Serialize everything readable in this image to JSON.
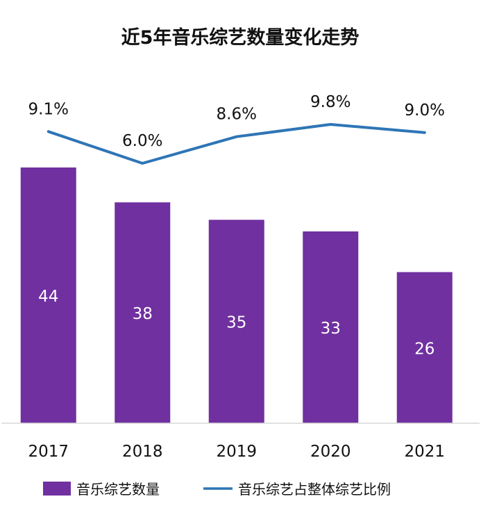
{
  "chart_data": {
    "type": "bar",
    "title": "近5年音乐综艺数量变化走势",
    "categories": [
      "2017",
      "2018",
      "2019",
      "2020",
      "2021"
    ],
    "series": [
      {
        "name": "音乐综艺数量",
        "type": "bar",
        "values": [
          44,
          38,
          35,
          33,
          26
        ],
        "color": "#7030A0",
        "label_color": "#ffffff"
      },
      {
        "name": "音乐综艺占整体综艺比例",
        "type": "line",
        "values": [
          9.1,
          6.0,
          8.6,
          9.8,
          9.0
        ],
        "labels": [
          "9.1%",
          "6.0%",
          "8.6%",
          "9.8%",
          "9.0%"
        ],
        "color": "#2E75B6"
      }
    ],
    "legend": "bottom",
    "grid": false
  }
}
